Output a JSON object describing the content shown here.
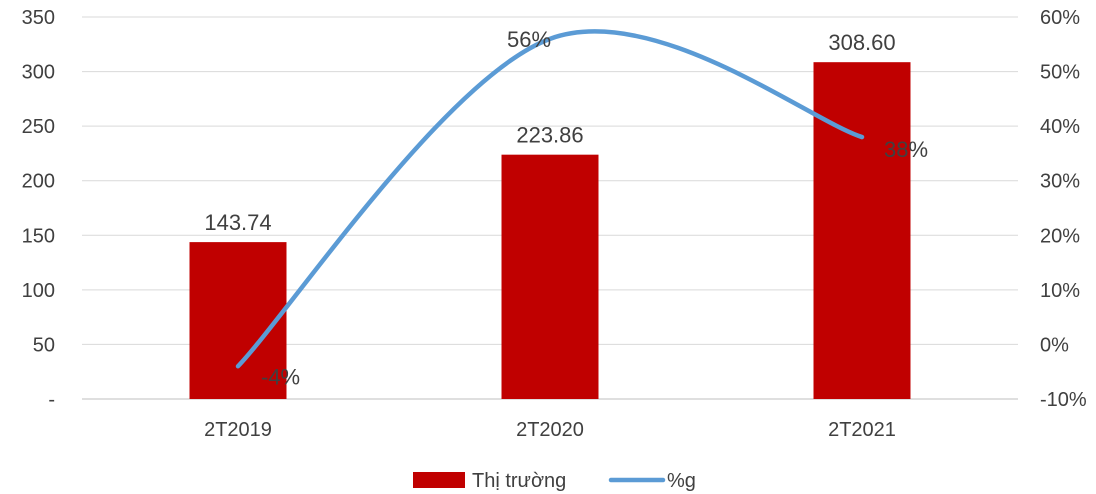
{
  "chart_data": {
    "type": "bar",
    "categories": [
      "2T2019",
      "2T2020",
      "2T2021"
    ],
    "series": [
      {
        "name": "Thị trường",
        "type": "bar",
        "axis": "left",
        "values": [
          143.74,
          223.86,
          308.6
        ],
        "labels": [
          "143.74",
          "223.86",
          "308.60"
        ],
        "color": "#C00000"
      },
      {
        "name": "%g",
        "type": "line",
        "axis": "right",
        "smooth": true,
        "values": [
          -4,
          56,
          38
        ],
        "labels": [
          "-4%",
          "56%",
          "38%"
        ],
        "color": "#5B9BD5"
      }
    ],
    "y_left": {
      "min": 0,
      "max": 350,
      "ticks": [
        0,
        50,
        100,
        150,
        200,
        250,
        300,
        350
      ],
      "tick_labels": [
        "-",
        "50",
        "100",
        "150",
        "200",
        "250",
        "300",
        "350"
      ]
    },
    "y_right": {
      "min": -10,
      "max": 60,
      "ticks": [
        -10,
        0,
        10,
        20,
        30,
        40,
        50,
        60
      ],
      "tick_labels": [
        "-10%",
        "0%",
        "10%",
        "20%",
        "30%",
        "40%",
        "50%",
        "60%"
      ]
    },
    "grid": true,
    "legend": "bottom",
    "title": "",
    "xlabel": "",
    "ylabel": ""
  }
}
